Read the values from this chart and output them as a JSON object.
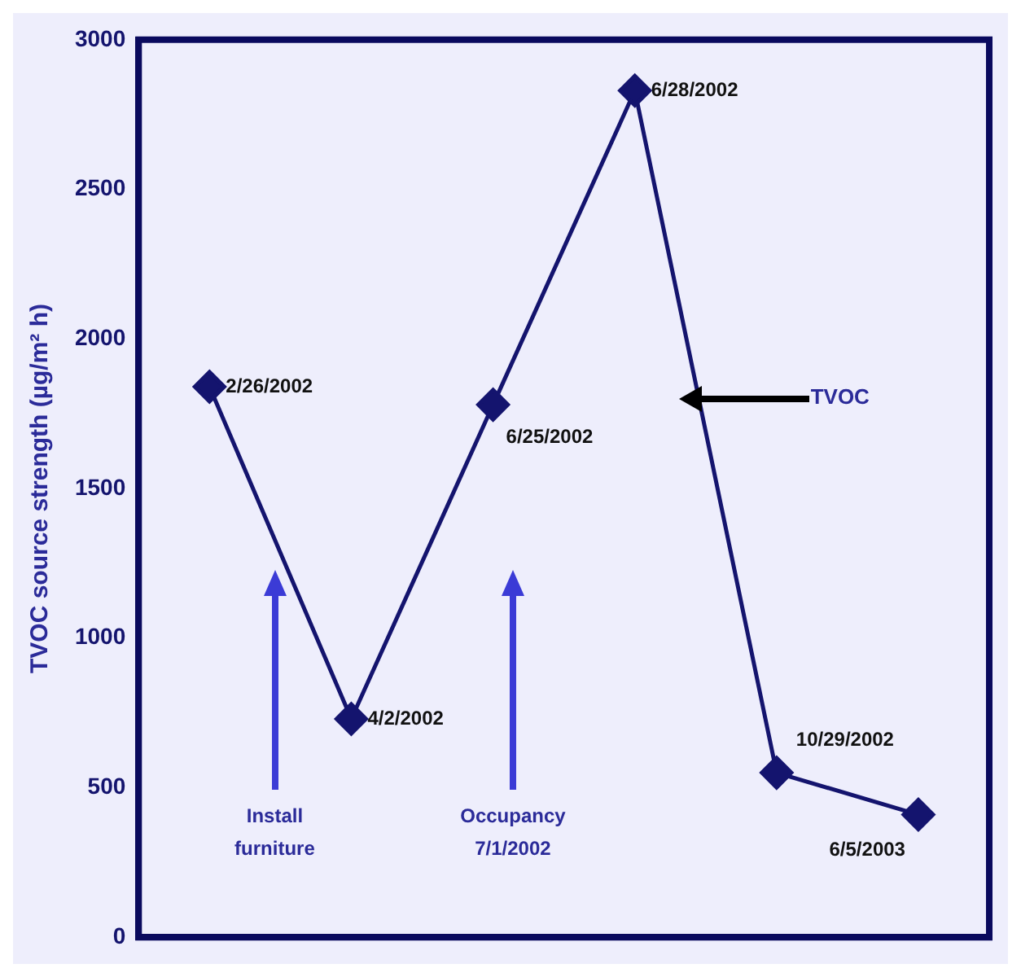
{
  "chart_data": {
    "type": "line",
    "ylabel": "TVOC source strength (µg/m² h)",
    "categories": [
      null,
      null,
      null,
      null,
      null,
      null
    ],
    "series": [
      {
        "color": "#14146e",
        "values": [
          1840,
          730,
          1780,
          2830,
          550,
          410
        ],
        "value_labels": [
          "2/26/2002",
          "4/2/2002",
          "6/25/2002",
          "6/28/2002",
          "10/29/2002",
          "6/5/2003"
        ]
      }
    ],
    "ylim": [
      0,
      3000
    ],
    "yticks": [
      0,
      500,
      1000,
      1500,
      2000,
      2500,
      3000
    ],
    "tick_labels": "y",
    "grid": false,
    "legend": false,
    "marker": "diamond",
    "line_style": "solid",
    "annotations": [
      "Install furniture",
      "Occupancy 7/1/2002",
      "TVOC"
    ]
  }
}
